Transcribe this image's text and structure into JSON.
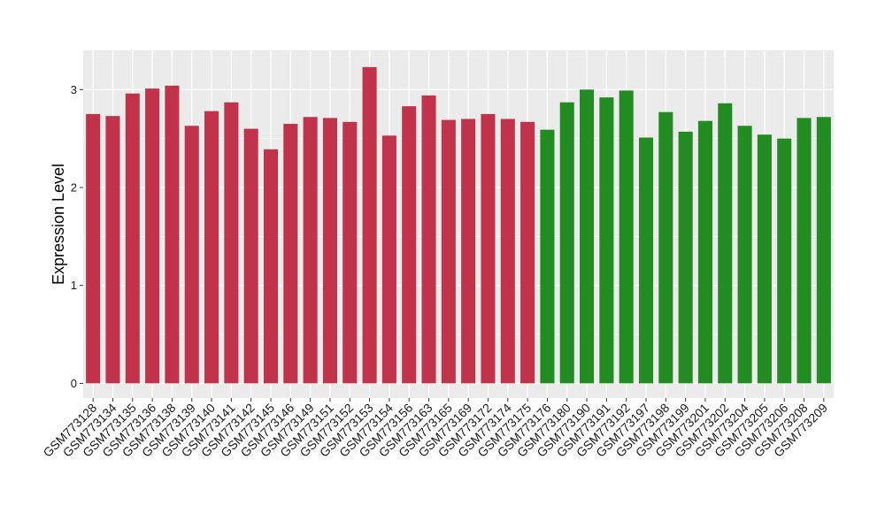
{
  "chart_data": {
    "type": "bar",
    "title": "",
    "xlabel": "",
    "ylabel": "Expression Level",
    "ylim": [
      -0.15,
      3.4
    ],
    "yticks": [
      0,
      1,
      2,
      3
    ],
    "grid": true,
    "background": "#ebebeb",
    "gridline_color": "#ffffff",
    "group_colors": [
      "#c0334a",
      "#228b22"
    ],
    "categories": [
      "GSM773128",
      "GSM773134",
      "GSM773135",
      "GSM773136",
      "GSM773138",
      "GSM773139",
      "GSM773140",
      "GSM773141",
      "GSM773142",
      "GSM773145",
      "GSM773146",
      "GSM773149",
      "GSM773151",
      "GSM773152",
      "GSM773153",
      "GSM773154",
      "GSM773156",
      "GSM773163",
      "GSM773165",
      "GSM773169",
      "GSM773172",
      "GSM773174",
      "GSM773175",
      "GSM773176",
      "GSM773180",
      "GSM773190",
      "GSM773191",
      "GSM773192",
      "GSM773197",
      "GSM773198",
      "GSM773199",
      "GSM773201",
      "GSM773202",
      "GSM773204",
      "GSM773205",
      "GSM773206",
      "GSM773208",
      "GSM773209"
    ],
    "values": [
      2.75,
      2.73,
      2.96,
      3.01,
      3.04,
      2.63,
      2.78,
      2.87,
      2.6,
      2.39,
      2.65,
      2.72,
      2.71,
      2.67,
      3.23,
      2.53,
      2.83,
      2.94,
      2.69,
      2.7,
      2.75,
      2.7,
      2.67,
      2.59,
      2.87,
      3.0,
      2.92,
      2.99,
      2.51,
      2.77,
      2.57,
      2.68,
      2.86,
      2.63,
      2.54,
      2.5,
      2.71,
      2.72
    ],
    "groups": [
      0,
      0,
      0,
      0,
      0,
      0,
      0,
      0,
      0,
      0,
      0,
      0,
      0,
      0,
      0,
      0,
      0,
      0,
      0,
      0,
      0,
      0,
      0,
      1,
      1,
      1,
      1,
      1,
      1,
      1,
      1,
      1,
      1,
      1,
      1,
      1,
      1,
      1
    ]
  }
}
